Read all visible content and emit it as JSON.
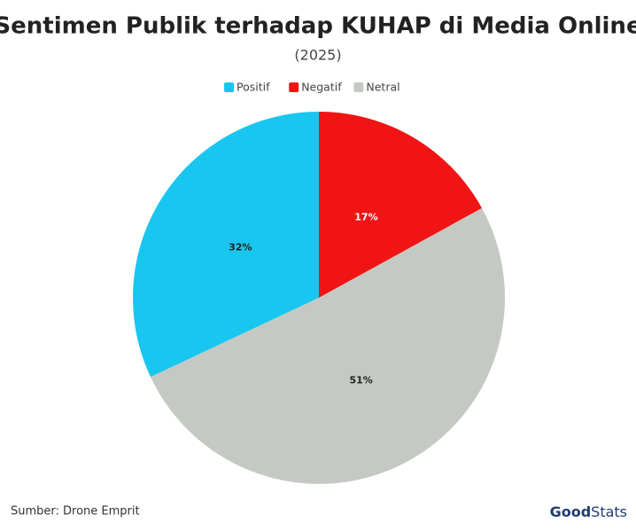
{
  "chart_data": {
    "type": "pie",
    "title": "Sentimen Publik terhadap KUHAP di Media Online",
    "subtitle": "(2025)",
    "categories": [
      "Positif",
      "Negatif",
      "Netral"
    ],
    "values": [
      32,
      17,
      51
    ],
    "value_labels": [
      "32%",
      "17%",
      "51%"
    ],
    "colors": [
      "#19c6f0",
      "#f01414",
      "#c5c9c3"
    ],
    "legend": "top",
    "source": "Sumber: Drone Emprit",
    "logo": {
      "left": "Good",
      "right": "Stats"
    }
  }
}
